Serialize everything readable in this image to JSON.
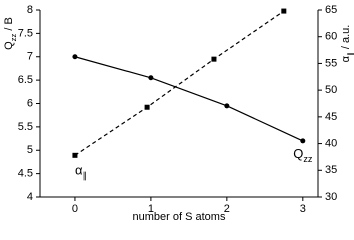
{
  "chart_data": {
    "type": "line",
    "xlabel": "number of S atoms",
    "ylabel": [
      "Q",
      "zz",
      " / B"
    ],
    "y2label": [
      "α",
      "∥",
      " / a.u."
    ],
    "xlim": [
      -0.46,
      3.2
    ],
    "xticks": [
      0,
      1,
      2,
      3
    ],
    "ylim": [
      4,
      8
    ],
    "yticks": [
      4,
      4.5,
      5,
      5.5,
      6,
      6.5,
      7,
      7.5,
      8
    ],
    "y2lim": [
      30,
      65
    ],
    "y2ticks": [
      30,
      35,
      40,
      45,
      50,
      55,
      60,
      65
    ],
    "series": [
      {
        "name": [
          "Q",
          "zz"
        ],
        "color": "#000000",
        "axis": "y",
        "dash": false,
        "marker": "circle",
        "x": [
          0,
          1,
          2,
          3
        ],
        "values": [
          7.0,
          6.55,
          5.95,
          5.2
        ]
      },
      {
        "name": [
          "α",
          "∥"
        ],
        "color": "#000000",
        "axis": "y2",
        "dash": true,
        "marker": "square",
        "x": [
          0,
          0.95,
          1.83,
          2.75
        ],
        "values": [
          37.8,
          46.8,
          55.8,
          64.8
        ]
      }
    ]
  }
}
